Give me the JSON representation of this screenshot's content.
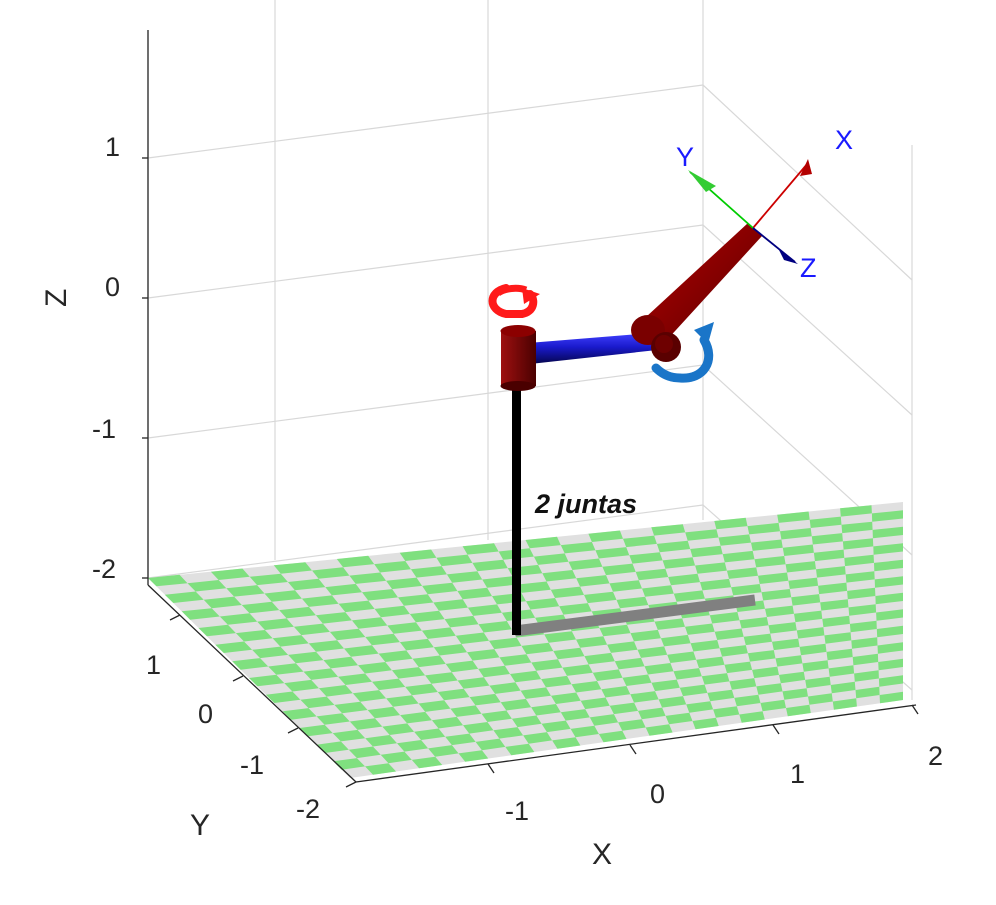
{
  "axes": {
    "x_label": "X",
    "y_label": "Y",
    "z_label": "Z",
    "x_ticks": [
      "-1",
      "0",
      "1",
      "2"
    ],
    "y_ticks": [
      "-2",
      "-1",
      "0",
      "1"
    ],
    "z_ticks": [
      "-2",
      "-1",
      "0",
      "1"
    ],
    "grid": true
  },
  "robot": {
    "label": "2 juntas",
    "joint_count": 2,
    "tool_frame": {
      "x_label": "X",
      "y_label": "Y",
      "z_label": "Z"
    }
  },
  "colors": {
    "floor_checker_a": "#7fe07f",
    "floor_checker_b": "#e0e0e0",
    "pole": "#000000",
    "base_shadow": "#808080",
    "joint_body": "#7a0000",
    "link1": "#1a1acc",
    "link2": "#990000",
    "joint1_arrow": "#ff1a1a",
    "joint2_arrow": "#1a75c8",
    "frame_x": "#cc0000",
    "frame_y": "#00cc00",
    "frame_z": "#000080",
    "frame_label": "#1a1aff",
    "grid": "#d8d8d8",
    "axis_line": "#262626"
  }
}
